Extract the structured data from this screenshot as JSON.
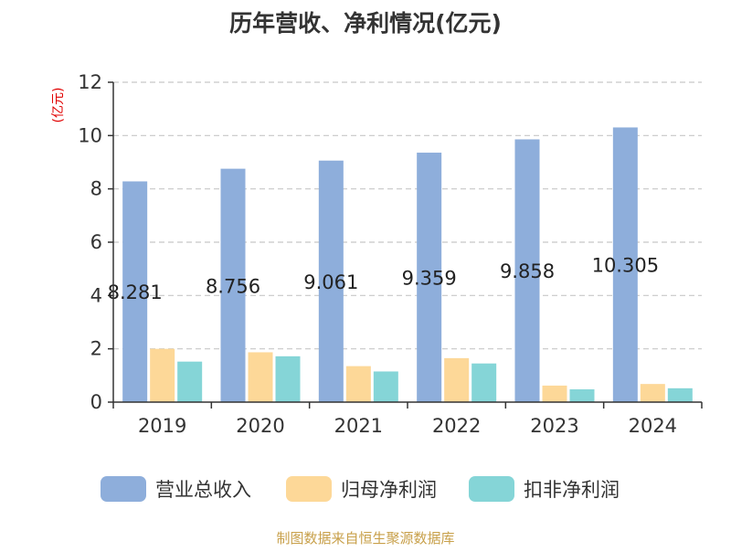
{
  "chart_data": {
    "type": "bar",
    "title": "历年营收、净利情况(亿元)",
    "ylabel": "(亿元)",
    "xlabel": "",
    "categories": [
      "2019",
      "2020",
      "2021",
      "2022",
      "2023",
      "2024"
    ],
    "ylim": [
      0,
      12
    ],
    "yticks": [
      "0",
      "2",
      "4",
      "6",
      "8",
      "10",
      "12"
    ],
    "grid": true,
    "legend_position": "bottom",
    "series": [
      {
        "name": "营业总收入",
        "color": "#8eaedb",
        "values": [
          8.281,
          8.756,
          9.061,
          9.359,
          9.858,
          10.305
        ],
        "labels": [
          "8.281",
          "8.756",
          "9.061",
          "9.359",
          "9.858",
          "10.305"
        ]
      },
      {
        "name": "归母净利润",
        "color": "#fdd898",
        "values": [
          2.0,
          1.87,
          1.35,
          1.65,
          0.62,
          0.68
        ]
      },
      {
        "name": "扣非净利润",
        "color": "#85d5d7",
        "values": [
          1.52,
          1.72,
          1.15,
          1.45,
          0.48,
          0.52
        ]
      }
    ]
  },
  "footer": {
    "source": "制图数据来自恒生聚源数据库"
  }
}
